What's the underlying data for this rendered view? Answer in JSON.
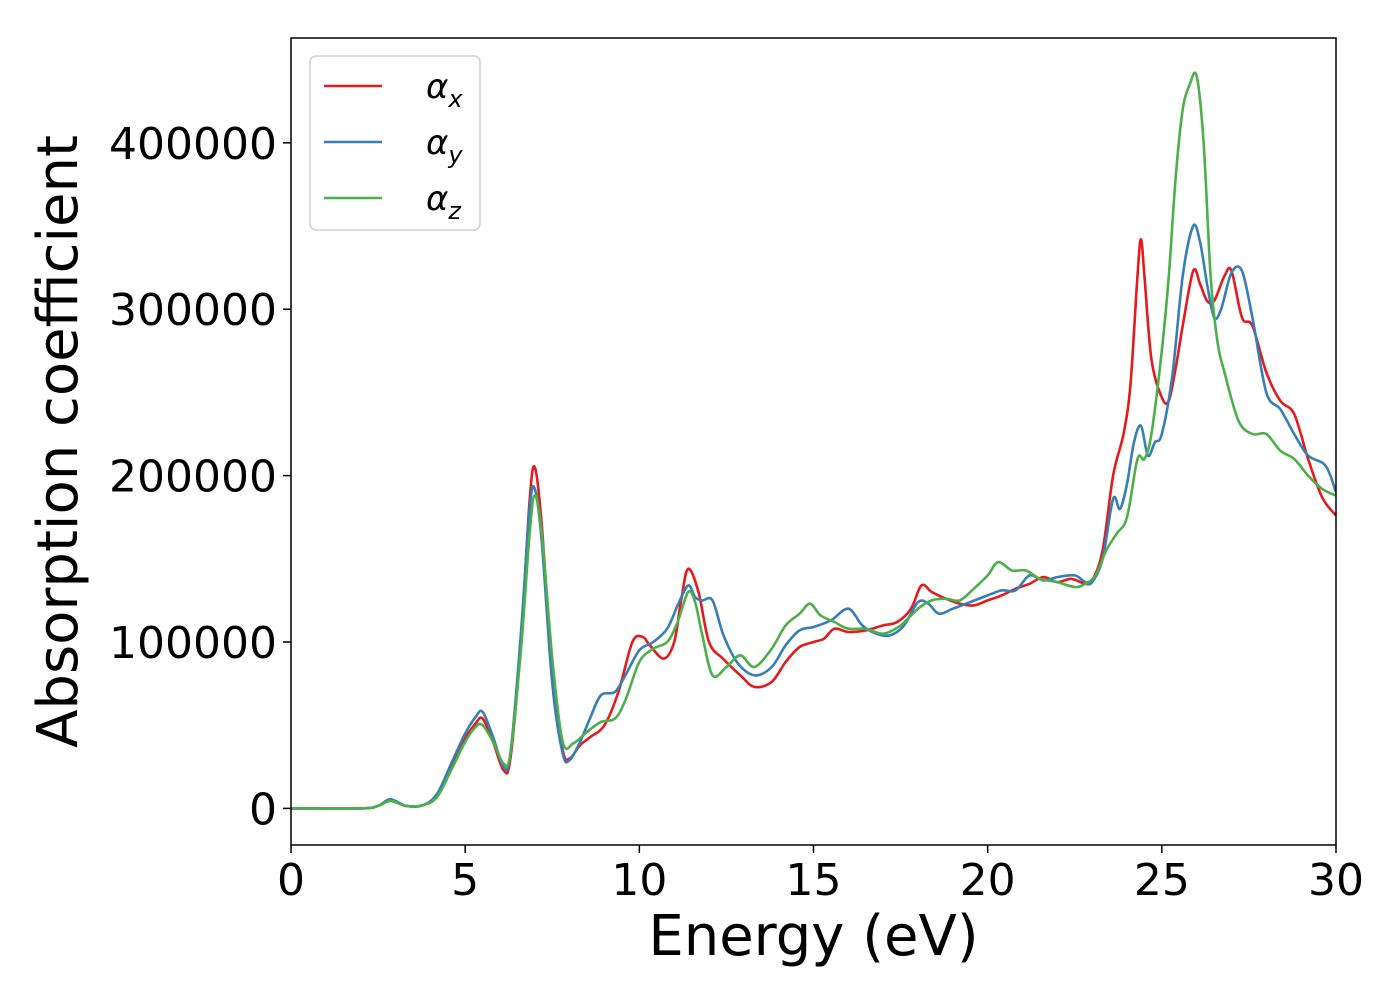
{
  "chart_data": {
    "type": "line",
    "title": "",
    "xlabel": "Energy (eV)",
    "ylabel": "Absorption coefficient",
    "xlim": [
      0,
      30
    ],
    "ylim": [
      -22000,
      463000
    ],
    "xticks": [
      0,
      5,
      10,
      15,
      20,
      25,
      30
    ],
    "xtick_labels": [
      "0",
      "5",
      "10",
      "15",
      "20",
      "25",
      "30"
    ],
    "yticks": [
      0,
      100000,
      200000,
      300000,
      400000
    ],
    "ytick_labels": [
      "0",
      "100000",
      "200000",
      "300000",
      "400000"
    ],
    "grid": false,
    "legend_position": "top-left",
    "series": [
      {
        "name_main": "α",
        "name_sub": "x",
        "color": "#e41a1c",
        "x": [
          0,
          2,
          2.5,
          2.85,
          3.3,
          3.8,
          4.2,
          4.6,
          5.0,
          5.3,
          5.5,
          5.8,
          6.1,
          6.3,
          6.6,
          6.85,
          7.0,
          7.2,
          7.5,
          7.8,
          8.0,
          8.3,
          8.6,
          9.0,
          9.4,
          9.8,
          10.1,
          10.3,
          10.7,
          11.0,
          11.2,
          11.4,
          11.7,
          12.0,
          12.4,
          12.9,
          13.3,
          13.8,
          14.2,
          14.6,
          15.0,
          15.3,
          15.6,
          16.0,
          16.5,
          17.0,
          17.4,
          17.8,
          18.1,
          18.4,
          18.8,
          19.2,
          19.6,
          20.0,
          20.4,
          20.8,
          21.2,
          21.6,
          22.0,
          22.4,
          22.8,
          23.0,
          23.3,
          23.6,
          23.9,
          24.1,
          24.3,
          24.4,
          24.5,
          24.7,
          25.0,
          25.2,
          25.4,
          25.6,
          25.9,
          26.1,
          26.3,
          26.5,
          26.8,
          27.0,
          27.3,
          27.6,
          28.0,
          28.4,
          28.8,
          29.2,
          29.6,
          30.0
        ],
        "y": [
          0,
          0,
          1500,
          5000,
          1500,
          2000,
          8000,
          25000,
          42000,
          51000,
          54000,
          40000,
          23000,
          30000,
          100000,
          185000,
          205000,
          170000,
          80000,
          35000,
          30000,
          38000,
          43000,
          50000,
          70000,
          100000,
          103000,
          98000,
          90000,
          100000,
          125000,
          144000,
          130000,
          100000,
          90000,
          80000,
          73000,
          76000,
          88000,
          97000,
          100000,
          102000,
          108000,
          106000,
          107000,
          110000,
          112000,
          120000,
          134000,
          130000,
          126000,
          123000,
          122000,
          125000,
          128000,
          132000,
          135000,
          139000,
          136000,
          138000,
          135000,
          137000,
          155000,
          200000,
          225000,
          255000,
          320000,
          342000,
          320000,
          270000,
          247000,
          245000,
          265000,
          290000,
          323000,
          315000,
          305000,
          305000,
          320000,
          323000,
          295000,
          290000,
          262000,
          245000,
          237000,
          210000,
          187000,
          176000
        ]
      },
      {
        "name_main": "α",
        "name_sub": "y",
        "color": "#377eb8",
        "x": [
          0,
          2,
          2.5,
          2.85,
          3.3,
          3.8,
          4.2,
          4.6,
          5.0,
          5.3,
          5.5,
          5.8,
          6.1,
          6.3,
          6.6,
          6.85,
          7.0,
          7.2,
          7.5,
          7.8,
          8.0,
          8.3,
          8.6,
          8.9,
          9.3,
          9.6,
          10.0,
          10.4,
          10.8,
          11.1,
          11.4,
          11.6,
          11.8,
          12.1,
          12.4,
          12.8,
          13.3,
          13.8,
          14.2,
          14.6,
          15.0,
          15.5,
          16.0,
          16.4,
          16.8,
          17.2,
          17.6,
          18.0,
          18.3,
          18.6,
          19.0,
          19.5,
          20.0,
          20.4,
          20.8,
          21.2,
          21.6,
          22.0,
          22.5,
          22.8,
          23.0,
          23.3,
          23.6,
          23.8,
          24.0,
          24.2,
          24.4,
          24.6,
          24.8,
          25.0,
          25.3,
          25.6,
          25.9,
          26.1,
          26.3,
          26.5,
          26.7,
          27.0,
          27.3,
          27.6,
          28.0,
          28.4,
          28.8,
          29.2,
          29.7,
          30.0
        ],
        "y": [
          0,
          0,
          1500,
          5500,
          1500,
          2000,
          9000,
          27000,
          45000,
          55000,
          58000,
          43000,
          25000,
          33000,
          105000,
          180000,
          192000,
          160000,
          75000,
          33000,
          29000,
          40000,
          55000,
          68000,
          70000,
          80000,
          95000,
          100000,
          108000,
          122000,
          134000,
          127000,
          125000,
          125000,
          105000,
          88000,
          80000,
          85000,
          98000,
          107000,
          109000,
          113000,
          120000,
          110000,
          105000,
          104000,
          110000,
          124000,
          123000,
          117000,
          120000,
          124000,
          128000,
          131000,
          131000,
          140000,
          137000,
          139000,
          140000,
          136000,
          136000,
          150000,
          186000,
          180000,
          195000,
          220000,
          230000,
          212000,
          220000,
          225000,
          260000,
          320000,
          350000,
          340000,
          315000,
          295000,
          300000,
          322000,
          323000,
          295000,
          250000,
          240000,
          225000,
          212000,
          206000,
          190000
        ]
      },
      {
        "name_main": "α",
        "name_sub": "z",
        "color": "#4daf4a",
        "x": [
          0,
          2,
          2.5,
          2.85,
          3.3,
          3.8,
          4.2,
          4.6,
          5.0,
          5.3,
          5.5,
          5.8,
          6.1,
          6.3,
          6.6,
          6.85,
          7.0,
          7.2,
          7.5,
          7.8,
          8.1,
          8.5,
          8.9,
          9.3,
          9.6,
          10.0,
          10.4,
          10.8,
          11.1,
          11.4,
          11.6,
          11.8,
          12.1,
          12.5,
          12.9,
          13.3,
          13.8,
          14.2,
          14.6,
          14.9,
          15.2,
          15.6,
          16.0,
          16.5,
          17.0,
          17.5,
          18.0,
          18.4,
          18.8,
          19.2,
          19.6,
          20.0,
          20.3,
          20.7,
          21.1,
          21.5,
          22.0,
          22.5,
          22.8,
          23.1,
          23.4,
          23.7,
          24.0,
          24.3,
          24.5,
          24.7,
          25.0,
          25.2,
          25.4,
          25.6,
          25.8,
          26.0,
          26.2,
          26.4,
          26.6,
          26.8,
          27.2,
          27.6,
          28.0,
          28.4,
          28.8,
          29.2,
          29.6,
          30.0
        ],
        "y": [
          0,
          0,
          1500,
          4500,
          1500,
          2000,
          7000,
          23000,
          40000,
          49000,
          50000,
          40000,
          27000,
          33000,
          95000,
          165000,
          188000,
          165000,
          90000,
          40000,
          39000,
          46000,
          52000,
          54000,
          65000,
          88000,
          96000,
          100000,
          112000,
          130000,
          124000,
          105000,
          80000,
          85000,
          92000,
          85000,
          96000,
          110000,
          117000,
          123000,
          116000,
          112000,
          108000,
          108000,
          105000,
          110000,
          120000,
          125000,
          126000,
          125000,
          132000,
          140000,
          148000,
          143000,
          143000,
          138000,
          136000,
          133000,
          135000,
          140000,
          155000,
          165000,
          175000,
          210000,
          210000,
          225000,
          275000,
          320000,
          380000,
          420000,
          435000,
          440000,
          400000,
          320000,
          280000,
          262000,
          233000,
          225000,
          225000,
          215000,
          210000,
          200000,
          192000,
          188000
        ]
      }
    ]
  }
}
